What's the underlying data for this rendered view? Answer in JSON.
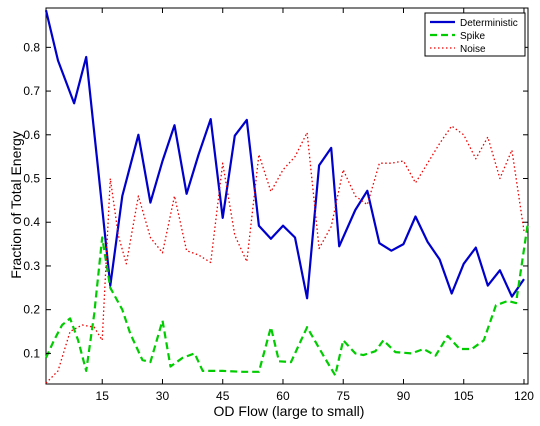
{
  "chart_data": {
    "type": "line",
    "title": "",
    "xlabel": "OD Flow (large to small)",
    "ylabel": "Fraction of Total Energy",
    "xlim": [
      1,
      121
    ],
    "ylim": [
      0.03,
      0.89
    ],
    "xticks": [
      15,
      30,
      45,
      60,
      75,
      90,
      105,
      120
    ],
    "yticks": [
      0.1,
      0.2,
      0.3,
      0.4,
      0.5,
      0.6,
      0.7,
      0.8
    ],
    "grid": false,
    "legend_position": "top-right",
    "series": [
      {
        "name": "Deterministic",
        "color": "#0000cc",
        "dash": "solid",
        "points": [
          [
            1,
            0.885
          ],
          [
            4,
            0.77
          ],
          [
            8,
            0.672
          ],
          [
            11,
            0.778
          ],
          [
            14,
            0.52
          ],
          [
            17,
            0.255
          ],
          [
            20,
            0.46
          ],
          [
            24,
            0.6
          ],
          [
            27,
            0.445
          ],
          [
            30,
            0.54
          ],
          [
            33,
            0.622
          ],
          [
            36,
            0.465
          ],
          [
            39,
            0.555
          ],
          [
            42,
            0.636
          ],
          [
            45,
            0.41
          ],
          [
            48,
            0.598
          ],
          [
            51,
            0.634
          ],
          [
            54,
            0.392
          ],
          [
            57,
            0.362
          ],
          [
            60,
            0.392
          ],
          [
            63,
            0.365
          ],
          [
            66,
            0.226
          ],
          [
            69,
            0.53
          ],
          [
            72,
            0.57
          ],
          [
            74,
            0.345
          ],
          [
            78,
            0.428
          ],
          [
            81,
            0.472
          ],
          [
            84,
            0.352
          ],
          [
            87,
            0.335
          ],
          [
            90,
            0.35
          ],
          [
            93,
            0.413
          ],
          [
            96,
            0.355
          ],
          [
            99,
            0.315
          ],
          [
            102,
            0.237
          ],
          [
            105,
            0.305
          ],
          [
            108,
            0.342
          ],
          [
            111,
            0.255
          ],
          [
            114,
            0.29
          ],
          [
            117,
            0.23
          ],
          [
            120,
            0.27
          ]
        ]
      },
      {
        "name": "Spike",
        "color": "#00cc00",
        "dash": "dashed",
        "points": [
          [
            1,
            0.09
          ],
          [
            3,
            0.13
          ],
          [
            5,
            0.165
          ],
          [
            7,
            0.18
          ],
          [
            9,
            0.13
          ],
          [
            11,
            0.06
          ],
          [
            13,
            0.19
          ],
          [
            15,
            0.365
          ],
          [
            17,
            0.25
          ],
          [
            20,
            0.2
          ],
          [
            22,
            0.145
          ],
          [
            25,
            0.085
          ],
          [
            27,
            0.08
          ],
          [
            30,
            0.175
          ],
          [
            32,
            0.07
          ],
          [
            35,
            0.09
          ],
          [
            38,
            0.1
          ],
          [
            40,
            0.06
          ],
          [
            45,
            0.06
          ],
          [
            50,
            0.058
          ],
          [
            54,
            0.058
          ],
          [
            57,
            0.16
          ],
          [
            59,
            0.082
          ],
          [
            62,
            0.08
          ],
          [
            66,
            0.16
          ],
          [
            70,
            0.096
          ],
          [
            73,
            0.05
          ],
          [
            75,
            0.13
          ],
          [
            78,
            0.1
          ],
          [
            80,
            0.096
          ],
          [
            83,
            0.105
          ],
          [
            85,
            0.13
          ],
          [
            88,
            0.103
          ],
          [
            92,
            0.1
          ],
          [
            95,
            0.11
          ],
          [
            98,
            0.095
          ],
          [
            101,
            0.14
          ],
          [
            104,
            0.11
          ],
          [
            107,
            0.11
          ],
          [
            110,
            0.13
          ],
          [
            113,
            0.21
          ],
          [
            116,
            0.22
          ],
          [
            118,
            0.215
          ],
          [
            121,
            0.4
          ]
        ]
      },
      {
        "name": "Noise",
        "color": "#ee0000",
        "dash": "dotted",
        "points": [
          [
            1,
            0.032
          ],
          [
            4,
            0.06
          ],
          [
            7,
            0.15
          ],
          [
            10,
            0.165
          ],
          [
            13,
            0.16
          ],
          [
            15,
            0.13
          ],
          [
            17,
            0.5
          ],
          [
            19,
            0.37
          ],
          [
            21,
            0.305
          ],
          [
            24,
            0.46
          ],
          [
            27,
            0.365
          ],
          [
            30,
            0.33
          ],
          [
            33,
            0.46
          ],
          [
            36,
            0.335
          ],
          [
            39,
            0.325
          ],
          [
            42,
            0.308
          ],
          [
            45,
            0.535
          ],
          [
            48,
            0.37
          ],
          [
            51,
            0.31
          ],
          [
            54,
            0.555
          ],
          [
            57,
            0.47
          ],
          [
            60,
            0.52
          ],
          [
            63,
            0.55
          ],
          [
            66,
            0.605
          ],
          [
            69,
            0.34
          ],
          [
            72,
            0.39
          ],
          [
            75,
            0.52
          ],
          [
            78,
            0.46
          ],
          [
            81,
            0.44
          ],
          [
            84,
            0.535
          ],
          [
            87,
            0.535
          ],
          [
            90,
            0.54
          ],
          [
            93,
            0.49
          ],
          [
            96,
            0.535
          ],
          [
            99,
            0.58
          ],
          [
            102,
            0.62
          ],
          [
            105,
            0.6
          ],
          [
            108,
            0.545
          ],
          [
            111,
            0.595
          ],
          [
            114,
            0.5
          ],
          [
            117,
            0.565
          ],
          [
            120,
            0.38
          ]
        ]
      }
    ]
  }
}
